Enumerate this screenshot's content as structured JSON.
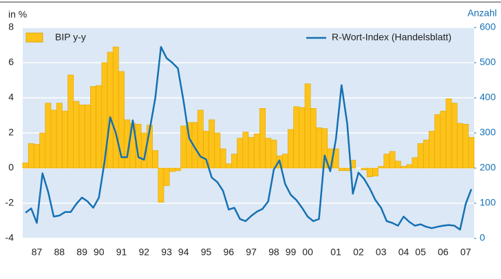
{
  "chart_data": {
    "type": "combo",
    "y_label": "in %",
    "y2_label": "Anzahl",
    "categories": [
      null,
      null,
      "87",
      null,
      null,
      null,
      "88",
      null,
      null,
      null,
      "89",
      null,
      null,
      "90",
      null,
      null,
      null,
      "91",
      null,
      null,
      null,
      "92",
      null,
      null,
      null,
      "93",
      null,
      null,
      "94",
      null,
      null,
      null,
      "95",
      null,
      null,
      null,
      "96",
      null,
      null,
      null,
      "97",
      null,
      null,
      null,
      "98",
      null,
      null,
      "99",
      null,
      null,
      "00",
      null,
      null,
      null,
      null,
      "01",
      null,
      null,
      null,
      "02",
      null,
      null,
      null,
      "03",
      null,
      null,
      null,
      "04",
      null,
      null,
      "05",
      null,
      null,
      null,
      "06",
      null,
      null,
      null,
      "07",
      null
    ],
    "series": [
      {
        "name": "BIP y-y",
        "type": "bar",
        "color": "#fdc31a",
        "values": [
          0.3,
          1.4,
          1.35,
          2.0,
          3.7,
          3.3,
          3.7,
          3.25,
          5.3,
          3.8,
          3.6,
          3.6,
          4.65,
          4.7,
          6.0,
          6.6,
          6.9,
          5.5,
          2.75,
          2.55,
          2.5,
          2.0,
          2.45,
          1.0,
          -1.95,
          -1.0,
          -0.2,
          -0.15,
          2.4,
          2.6,
          2.6,
          3.3,
          2.1,
          2.75,
          2.0,
          1.1,
          0.25,
          0.8,
          1.7,
          2.05,
          1.75,
          1.95,
          3.4,
          1.7,
          1.6,
          0.7,
          0.8,
          2.2,
          3.5,
          3.45,
          4.8,
          3.4,
          2.3,
          2.25,
          1.1,
          1.1,
          -0.15,
          -0.15,
          0.45,
          0,
          -0.1,
          -0.5,
          -0.45,
          0.1,
          0.8,
          0.95,
          0.4,
          0.1,
          0.2,
          0.6,
          1.4,
          1.6,
          2.1,
          3.05,
          3.25,
          3.95,
          3.7,
          2.55,
          2.5,
          1.75
        ]
      },
      {
        "name": "R-Wort-Index (Handelsblatt)",
        "type": "line",
        "axis": "y2",
        "color": "#1470b4",
        "values": [
          73,
          85,
          44,
          185,
          133,
          62,
          65,
          75,
          75,
          98,
          116,
          105,
          87,
          116,
          218,
          345,
          300,
          231,
          231,
          336,
          231,
          224,
          309,
          400,
          545,
          513,
          500,
          484,
          391,
          285,
          258,
          233,
          225,
          173,
          160,
          135,
          82,
          87,
          55,
          49,
          64,
          76,
          84,
          105,
          196,
          222,
          155,
          124,
          109,
          87,
          62,
          49,
          55,
          236,
          191,
          282,
          436,
          327,
          127,
          187,
          169,
          142,
          109,
          87,
          49,
          44,
          36,
          62,
          47,
          36,
          40,
          33,
          29,
          33,
          36,
          38,
          36,
          25,
          98,
          140
        ]
      }
    ],
    "ylim": [
      -4,
      8
    ],
    "yticks": [
      -4,
      -2,
      0,
      2,
      4,
      6,
      8
    ],
    "y2lim": [
      0,
      600
    ],
    "y2ticks": [
      0,
      100,
      200,
      300,
      400,
      500,
      600
    ],
    "grid": true
  }
}
